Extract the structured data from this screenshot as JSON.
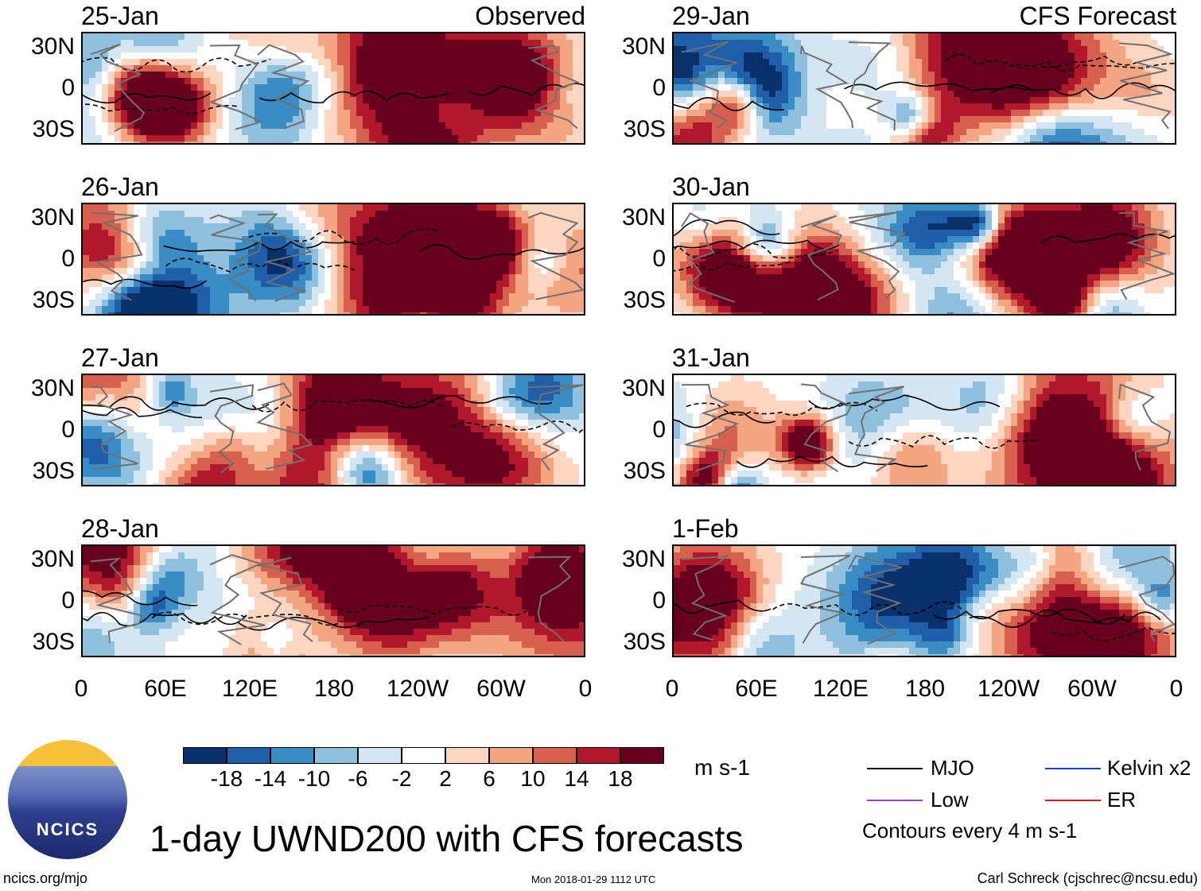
{
  "panels": [
    {
      "date": "25-Jan",
      "tag": "Observed"
    },
    {
      "date": "26-Jan",
      "tag": ""
    },
    {
      "date": "27-Jan",
      "tag": ""
    },
    {
      "date": "28-Jan",
      "tag": ""
    },
    {
      "date": "29-Jan",
      "tag": "CFS Forecast"
    },
    {
      "date": "30-Jan",
      "tag": ""
    },
    {
      "date": "31-Jan",
      "tag": ""
    },
    {
      "date": "1-Feb",
      "tag": ""
    }
  ],
  "axes": {
    "lat_ticks": [
      "30N",
      "0",
      "30S"
    ],
    "lon_ticks": [
      "0",
      "60E",
      "120E",
      "180",
      "120W",
      "60W",
      "0"
    ]
  },
  "colorbar": {
    "labels": [
      "-18",
      "-14",
      "-10",
      "-6",
      "-2",
      "2",
      "6",
      "10",
      "14",
      "18"
    ],
    "colors": [
      "#08306b",
      "#1f5ea8",
      "#3a8cc4",
      "#8fc0de",
      "#d4e6f2",
      "#ffffff",
      "#fdd6c1",
      "#f4a582",
      "#d6604d",
      "#b2182b",
      "#67001f"
    ],
    "units": "m s-1"
  },
  "legend": {
    "items": [
      {
        "label": "MJO",
        "color": "#000000"
      },
      {
        "label": "Kelvin x2",
        "color": "#1a3ccf"
      },
      {
        "label": "Low",
        "color": "#9b3fd6"
      },
      {
        "label": "ER",
        "color": "#e01010"
      }
    ],
    "note": "Contours every 4 m s-1"
  },
  "title": "1-day UWND200 with CFS forecasts",
  "logo_text": "NCICS",
  "footer": {
    "url": "ncics.org/mjo",
    "timestamp": "Mon 2018-01-29 1112 UTC",
    "credit": "Carl Schreck (cjschrec@ncsu.edu)"
  },
  "chart_data": {
    "type": "heatmap",
    "variable": "200-hPa zonal wind anomaly (UWND200)",
    "units": "m s-1",
    "x_range": [
      "0",
      "0"
    ],
    "x_ticks": [
      "0",
      "60E",
      "120E",
      "180",
      "120W",
      "60W",
      "0"
    ],
    "y_range": [
      "30S",
      "30N"
    ],
    "y_ticks": [
      "30N",
      "0",
      "30S"
    ],
    "color_levels": [
      -18,
      -14,
      -10,
      -6,
      -2,
      2,
      6,
      10,
      14,
      18
    ],
    "contour_interval": 4,
    "observed_dates": [
      "25-Jan",
      "26-Jan",
      "27-Jan",
      "28-Jan"
    ],
    "forecast_dates": [
      "29-Jan",
      "30-Jan",
      "31-Jan",
      "1-Feb"
    ]
  }
}
